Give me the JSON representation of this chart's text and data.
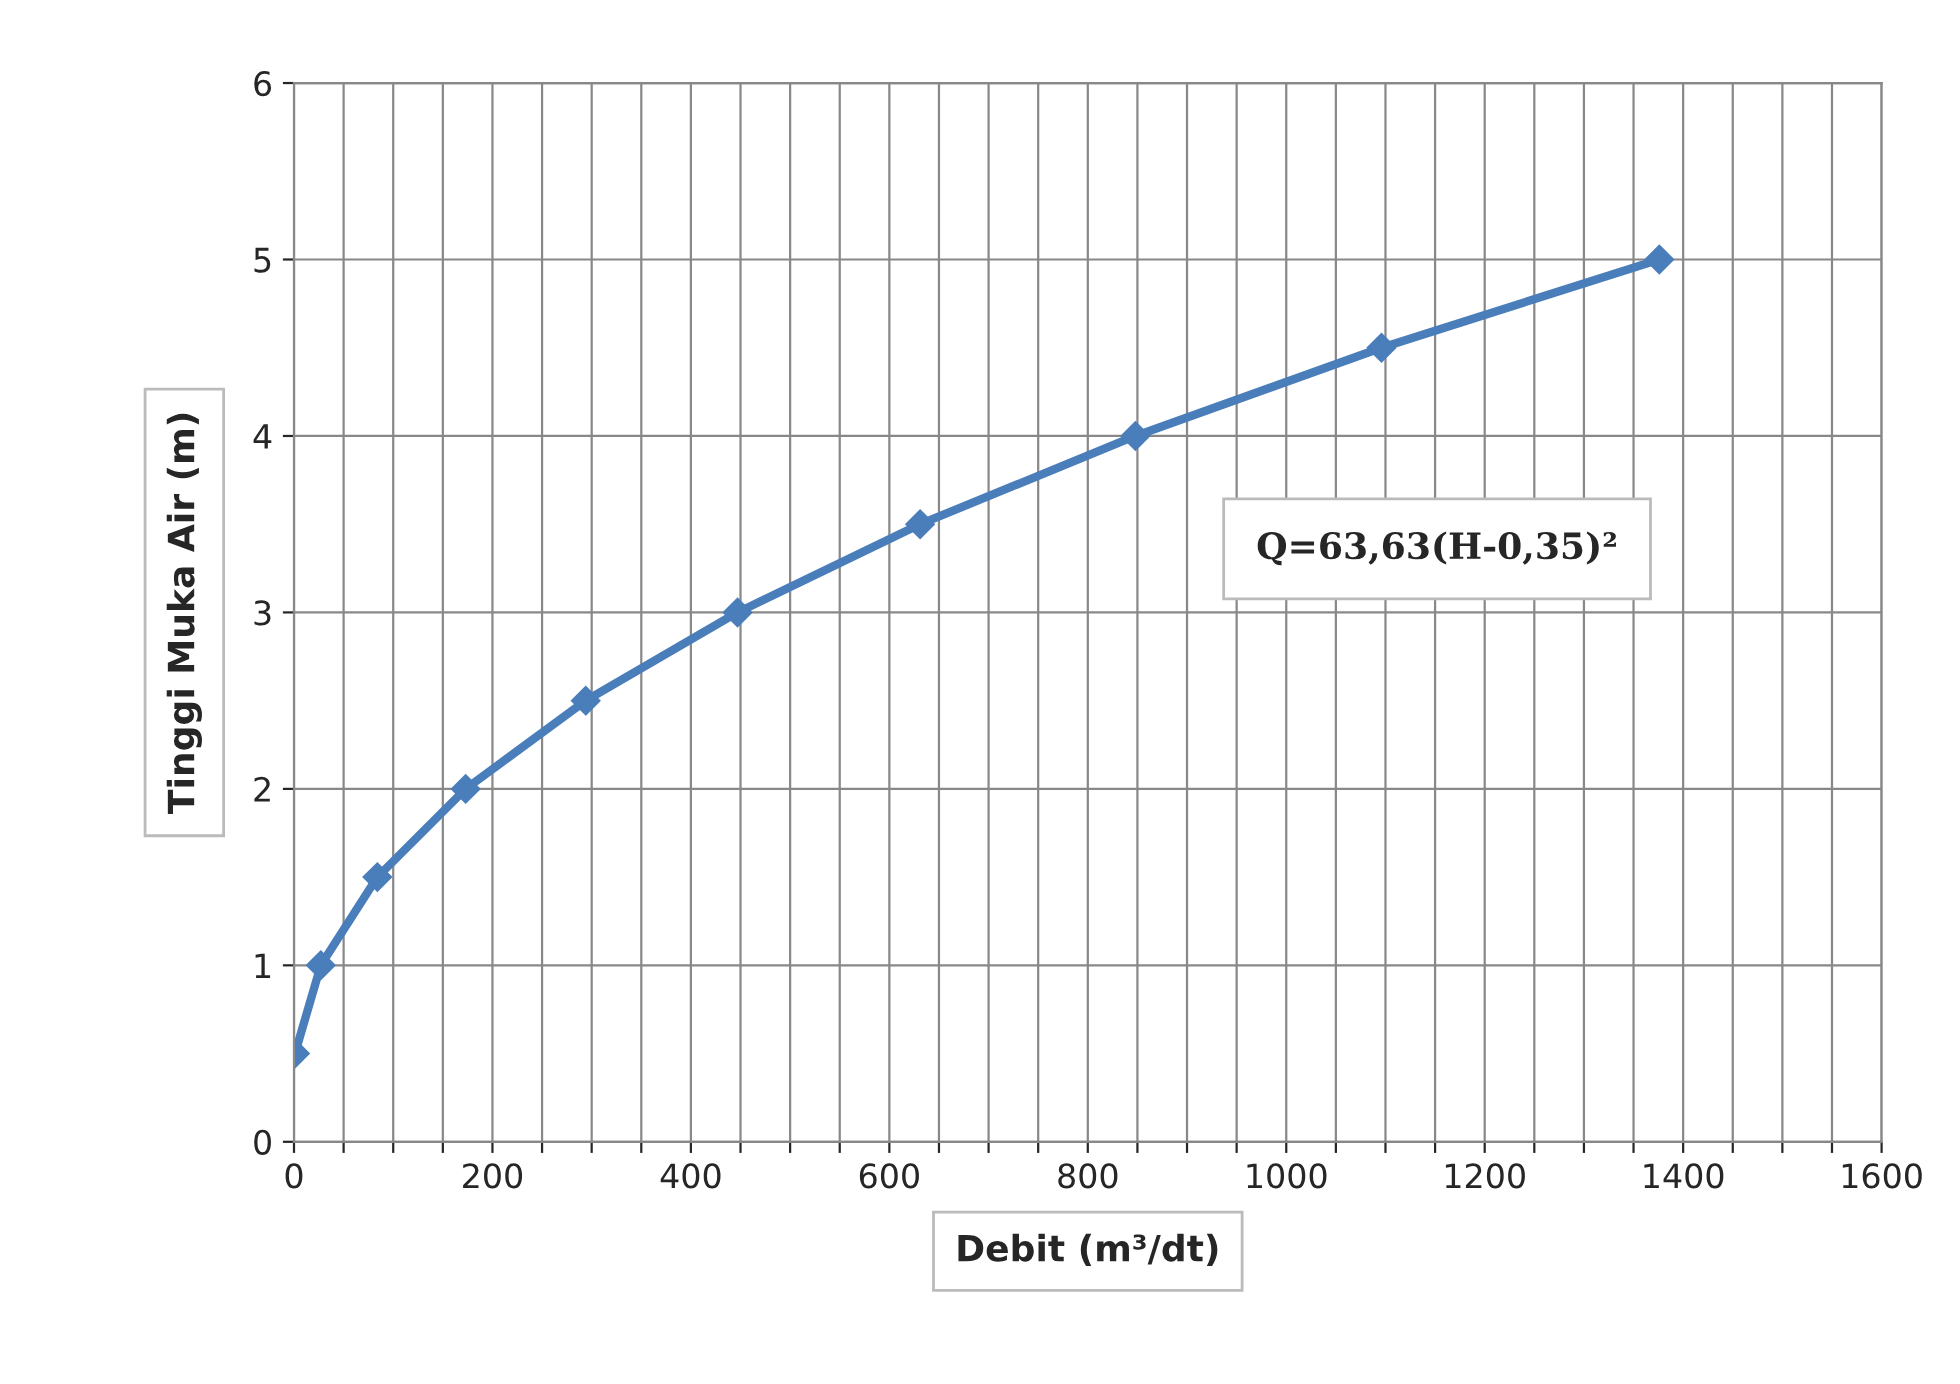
{
  "chart_data": {
    "type": "line",
    "xlabel": "Debit (m³/dt)",
    "ylabel": "Tinggi Muka Air (m)",
    "annotations": [
      "Q=63,63(H-0,35)²"
    ],
    "x": [
      1,
      27,
      84,
      173,
      294,
      447,
      631,
      848,
      1096,
      1376
    ],
    "series": [
      {
        "color": "#4a7ebb",
        "values": [
          0.5,
          1,
          1.5,
          2,
          2.5,
          3,
          3.5,
          4,
          4.5,
          5
        ]
      }
    ],
    "xlim": [
      0,
      1600
    ],
    "xticks": [
      0,
      {
        "value": 50,
        "label": null
      },
      {
        "value": 100,
        "label": null
      },
      {
        "value": 150,
        "label": null
      },
      200,
      {
        "value": 250,
        "label": null
      },
      {
        "value": 300,
        "label": null
      },
      {
        "value": 350,
        "label": null
      },
      400,
      {
        "value": 450,
        "label": null
      },
      {
        "value": 500,
        "label": null
      },
      {
        "value": 550,
        "label": null
      },
      600,
      {
        "value": 650,
        "label": null
      },
      {
        "value": 700,
        "label": null
      },
      {
        "value": 750,
        "label": null
      },
      800,
      {
        "value": 850,
        "label": null
      },
      {
        "value": 900,
        "label": null
      },
      {
        "value": 950,
        "label": null
      },
      1000,
      {
        "value": 1050,
        "label": null
      },
      {
        "value": 1100,
        "label": null
      },
      {
        "value": 1150,
        "label": null
      },
      1200,
      {
        "value": 1250,
        "label": null
      },
      {
        "value": 1300,
        "label": null
      },
      {
        "value": 1350,
        "label": null
      },
      1400,
      {
        "value": 1450,
        "label": null
      },
      {
        "value": 1500,
        "label": null
      },
      {
        "value": 1550,
        "label": null
      },
      1600
    ],
    "ylim": [
      0,
      6
    ],
    "yticks": [
      0,
      1,
      2,
      3,
      4,
      5,
      6
    ],
    "grid": true,
    "legend": false,
    "marker": "diamond",
    "line_style": "solid"
  }
}
